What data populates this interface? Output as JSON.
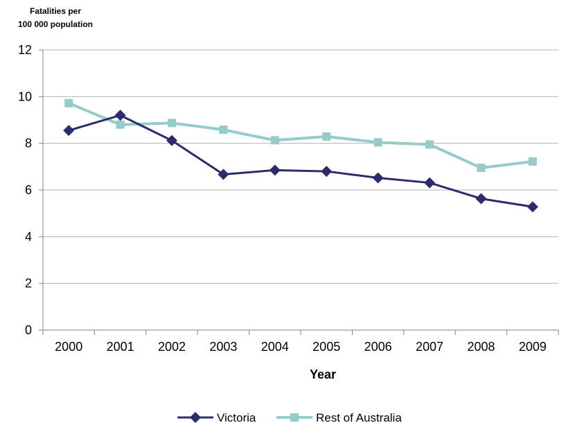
{
  "chart_data": {
    "type": "line",
    "ylabel_lines": [
      "Fatalities per",
      "100 000 population"
    ],
    "xlabel": "Year",
    "categories": [
      "2000",
      "2001",
      "2002",
      "2003",
      "2004",
      "2005",
      "2006",
      "2007",
      "2008",
      "2009"
    ],
    "ylim": [
      0,
      12
    ],
    "yticks": [
      0,
      2,
      4,
      6,
      8,
      10,
      12
    ],
    "grid": true,
    "legend_position": "bottom",
    "series": [
      {
        "name": "Victoria",
        "color": "#2b2b6e",
        "marker": "diamond",
        "values": [
          8.55,
          9.2,
          8.12,
          6.67,
          6.85,
          6.8,
          6.52,
          6.31,
          5.63,
          5.28
        ]
      },
      {
        "name": "Rest of Australia",
        "color": "#94cbcb",
        "marker": "square",
        "values": [
          9.72,
          8.8,
          8.87,
          8.58,
          8.13,
          8.29,
          8.04,
          7.95,
          6.95,
          7.22
        ]
      }
    ]
  }
}
